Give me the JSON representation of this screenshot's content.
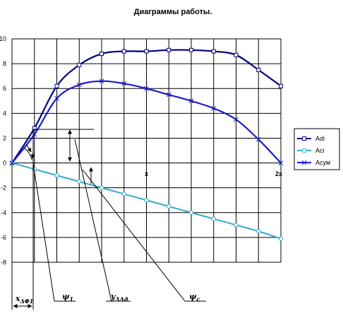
{
  "chart_data": {
    "type": "line",
    "title": "Диаграммы работы.",
    "ylim": [
      -8,
      10
    ],
    "yticks": [
      "10",
      "8",
      "6",
      "4",
      "2",
      "0",
      "-2",
      "-4",
      "-6",
      "-8"
    ],
    "x": [
      0,
      1,
      2,
      3,
      4,
      5,
      6,
      7,
      8,
      9,
      10,
      11,
      12
    ],
    "xlim": [
      0,
      12
    ],
    "grid": true,
    "legend_position": "right",
    "series": [
      {
        "name": "Adi",
        "color": "#000080",
        "marker": "square",
        "values": [
          0,
          2.8,
          6.2,
          7.9,
          8.8,
          9.0,
          9.0,
          9.1,
          9.1,
          9.0,
          8.7,
          7.5,
          6.2
        ]
      },
      {
        "name": "Aci",
        "color": "#33aacc",
        "marker": "circle",
        "values": [
          0,
          -0.5,
          -1.0,
          -1.5,
          -2.0,
          -2.5,
          -3.0,
          -3.5,
          -4.0,
          -4.5,
          -5.0,
          -5.5,
          -6.1
        ]
      },
      {
        "name": "Асум",
        "color": "#1a1acc",
        "marker": "x",
        "values": [
          0,
          2.3,
          5.2,
          6.3,
          6.6,
          6.4,
          6.0,
          5.5,
          5.0,
          4.4,
          3.5,
          1.9,
          0
        ]
      }
    ]
  },
  "annotations": {
    "x_label": "x",
    "x_sub": "ΔΦ1",
    "psi1_label": "ψ",
    "psi1_sub": "1",
    "y_label": "y",
    "y_sub": "ΔAд",
    "psic_label": "ψ",
    "psic_sub": "c",
    "mark_center": "x",
    "mark_end": "2x"
  }
}
